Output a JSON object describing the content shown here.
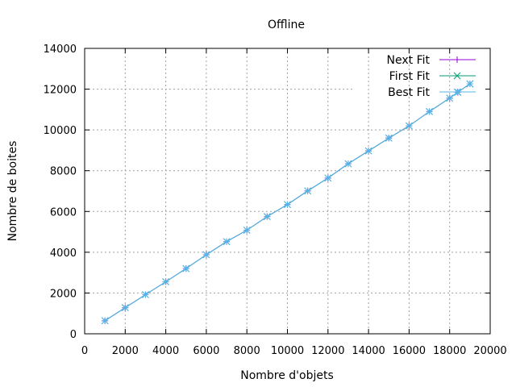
{
  "chart_data": {
    "type": "line",
    "title": "Offline",
    "xlabel": "Nombre d'objets",
    "ylabel": "Nombre de boites",
    "xlim": [
      0,
      20000
    ],
    "ylim": [
      0,
      14000
    ],
    "xticks": [
      0,
      2000,
      4000,
      6000,
      8000,
      10000,
      12000,
      14000,
      16000,
      18000,
      20000
    ],
    "yticks": [
      0,
      2000,
      4000,
      6000,
      8000,
      10000,
      12000,
      14000
    ],
    "grid": true,
    "legend_position": "top-right",
    "series": [
      {
        "name": "Next Fit",
        "color": "#9400d3",
        "marker": "plus",
        "x": [
          1000,
          2000,
          3000,
          4000,
          5000,
          6000,
          7000,
          8000,
          9000,
          10000,
          11000,
          12000,
          13000,
          14000,
          15000,
          16000,
          17000,
          18000,
          18400,
          19000
        ],
        "y": [
          640,
          1280,
          1920,
          2550,
          3200,
          3880,
          4520,
          5080,
          5750,
          6340,
          7010,
          7640,
          8340,
          8970,
          9600,
          10200,
          10900,
          11560,
          11850,
          12260
        ]
      },
      {
        "name": "First Fit",
        "color": "#009e73",
        "marker": "cross",
        "x": [
          1000,
          2000,
          3000,
          4000,
          5000,
          6000,
          7000,
          8000,
          9000,
          10000,
          11000,
          12000,
          13000,
          14000,
          15000,
          16000,
          17000,
          18000,
          18400,
          19000
        ],
        "y": [
          640,
          1280,
          1920,
          2550,
          3200,
          3880,
          4520,
          5080,
          5750,
          6340,
          7010,
          7640,
          8340,
          8970,
          9600,
          10200,
          10900,
          11560,
          11850,
          12260
        ]
      },
      {
        "name": "Best Fit",
        "color": "#56b4e9",
        "marker": "star",
        "x": [
          1000,
          2000,
          3000,
          4000,
          5000,
          6000,
          7000,
          8000,
          9000,
          10000,
          11000,
          12000,
          13000,
          14000,
          15000,
          16000,
          17000,
          18000,
          18400,
          19000
        ],
        "y": [
          640,
          1280,
          1920,
          2550,
          3200,
          3880,
          4520,
          5080,
          5750,
          6340,
          7010,
          7640,
          8340,
          8970,
          9600,
          10200,
          10900,
          11560,
          11850,
          12260
        ]
      }
    ]
  }
}
